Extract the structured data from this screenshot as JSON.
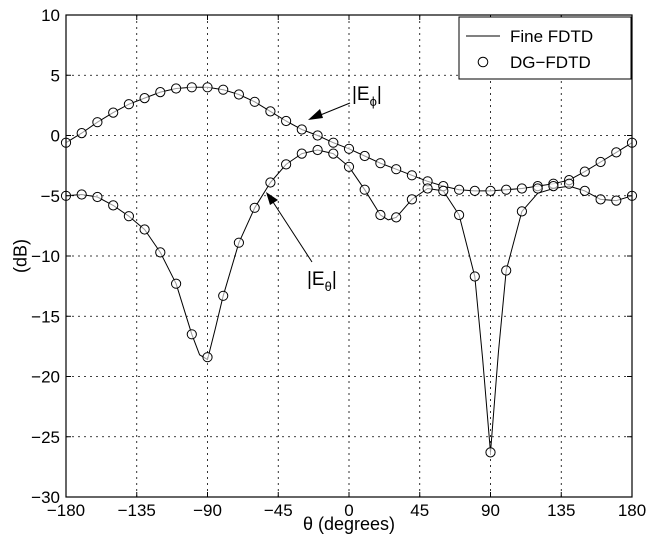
{
  "chart_data": {
    "type": "line",
    "title": "",
    "xlabel": "θ (degrees)",
    "ylabel": "(dB)",
    "xlim": [
      -180,
      180
    ],
    "ylim": [
      -30,
      10
    ],
    "xticks": [
      -180,
      -135,
      -90,
      -45,
      0,
      45,
      90,
      135,
      180
    ],
    "xtick_labels": [
      "−180",
      "−135",
      "−90",
      "−45",
      "0",
      "45",
      "90",
      "135",
      "180"
    ],
    "yticks": [
      -30,
      -25,
      -20,
      -15,
      -10,
      -5,
      0,
      5,
      10
    ],
    "ytick_labels": [
      "−30",
      "−25",
      "−20",
      "−15",
      "−10",
      "−5",
      "0",
      "5",
      "10"
    ],
    "grid": true,
    "legend_position": "top-right",
    "legend": [
      {
        "label": "Fine FDTD",
        "marker": "line"
      },
      {
        "label": "DG−FDTD",
        "marker": "circle"
      }
    ],
    "annotations": [
      {
        "text_main": "|E",
        "text_sub": "ϕ",
        "text_end": "|",
        "points_to": [
          -20,
          1.2
        ]
      },
      {
        "text_main": "|E",
        "text_sub": "θ",
        "text_end": "|",
        "points_to": [
          -60,
          -5.2
        ]
      }
    ],
    "series": [
      {
        "component": "E_phi",
        "x": [
          -180,
          -170,
          -160,
          -150,
          -140,
          -130,
          -120,
          -110,
          -100,
          -90,
          -80,
          -70,
          -60,
          -50,
          -40,
          -30,
          -20,
          -10,
          0,
          10,
          20,
          30,
          40,
          50,
          60,
          70,
          80,
          90,
          100,
          110,
          120,
          130,
          140,
          150,
          160,
          170,
          180
        ],
        "y": [
          -0.6,
          0.2,
          1.1,
          1.9,
          2.6,
          3.1,
          3.6,
          3.9,
          4.0,
          4.0,
          3.8,
          3.4,
          2.8,
          2.0,
          1.2,
          0.5,
          0.0,
          -0.6,
          -1.1,
          -1.7,
          -2.3,
          -2.8,
          -3.3,
          -3.8,
          -4.2,
          -4.5,
          -4.6,
          -4.6,
          -4.5,
          -4.4,
          -4.2,
          -4.0,
          -3.7,
          -3.0,
          -2.2,
          -1.4,
          -0.6
        ]
      },
      {
        "component": "E_theta",
        "x": [
          -180,
          -170,
          -160,
          -150,
          -140,
          -130,
          -120,
          -110,
          -100,
          -95,
          -90,
          -85,
          -80,
          -70,
          -60,
          -50,
          -40,
          -30,
          -20,
          -10,
          0,
          10,
          20,
          25,
          30,
          40,
          50,
          60,
          70,
          80,
          85,
          90,
          95,
          100,
          110,
          120,
          130,
          140,
          150,
          160,
          170,
          180
        ],
        "y": [
          -5.0,
          -4.9,
          -5.1,
          -5.8,
          -6.7,
          -7.8,
          -9.7,
          -12.3,
          -16.5,
          -18.2,
          -18.6,
          -16.0,
          -13.3,
          -8.9,
          -6.0,
          -3.9,
          -2.4,
          -1.5,
          -1.2,
          -1.5,
          -2.6,
          -4.5,
          -6.6,
          -7.0,
          -6.8,
          -5.3,
          -4.4,
          -4.6,
          -6.6,
          -11.7,
          -18.5,
          -26.3,
          -18.0,
          -11.2,
          -6.3,
          -4.8,
          -4.4,
          -4.2,
          -4.6,
          -5.3,
          -5.4,
          -5.0
        ]
      }
    ],
    "markers": {
      "E_phi": {
        "x": [
          -180,
          -170,
          -160,
          -150,
          -140,
          -130,
          -120,
          -110,
          -100,
          -90,
          -80,
          -70,
          -60,
          -50,
          -40,
          -30,
          -20,
          -10,
          0,
          10,
          20,
          30,
          40,
          50,
          60,
          70,
          80,
          90,
          100,
          110,
          120,
          130,
          140,
          150,
          160,
          170,
          180
        ],
        "y": [
          -0.6,
          0.2,
          1.1,
          1.9,
          2.6,
          3.1,
          3.6,
          3.9,
          4.0,
          4.0,
          3.8,
          3.4,
          2.8,
          2.0,
          1.2,
          0.5,
          0.0,
          -0.6,
          -1.1,
          -1.7,
          -2.3,
          -2.8,
          -3.3,
          -3.8,
          -4.2,
          -4.5,
          -4.6,
          -4.6,
          -4.5,
          -4.4,
          -4.2,
          -4.0,
          -3.7,
          -3.0,
          -2.2,
          -1.4,
          -0.6
        ]
      },
      "E_theta": {
        "x": [
          -180,
          -170,
          -160,
          -150,
          -140,
          -130,
          -120,
          -110,
          -100,
          -90,
          -80,
          -70,
          -60,
          -50,
          -40,
          -30,
          -20,
          -10,
          0,
          10,
          20,
          30,
          40,
          50,
          60,
          70,
          80,
          90,
          100,
          110,
          120,
          130,
          140,
          150,
          160,
          170,
          180
        ],
        "y": [
          -5.0,
          -4.9,
          -5.1,
          -5.8,
          -6.7,
          -7.8,
          -9.7,
          -12.3,
          -16.5,
          -18.4,
          -13.3,
          -8.9,
          -6.0,
          -3.9,
          -2.4,
          -1.5,
          -1.2,
          -1.5,
          -2.6,
          -4.5,
          -6.6,
          -6.8,
          -5.3,
          -4.4,
          -4.6,
          -6.6,
          -11.7,
          -26.3,
          -11.2,
          -6.3,
          -4.4,
          -4.2,
          -4.0,
          -4.6,
          -5.3,
          -5.4,
          -5.0
        ]
      }
    }
  }
}
